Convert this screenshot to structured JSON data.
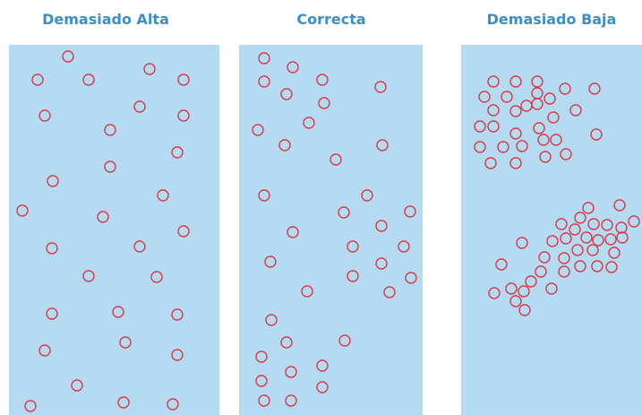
{
  "panels": [
    {
      "title": "Demasiado Alta"
    },
    {
      "title": "Correcta"
    },
    {
      "title": "Demasiado Baja"
    }
  ]
}
